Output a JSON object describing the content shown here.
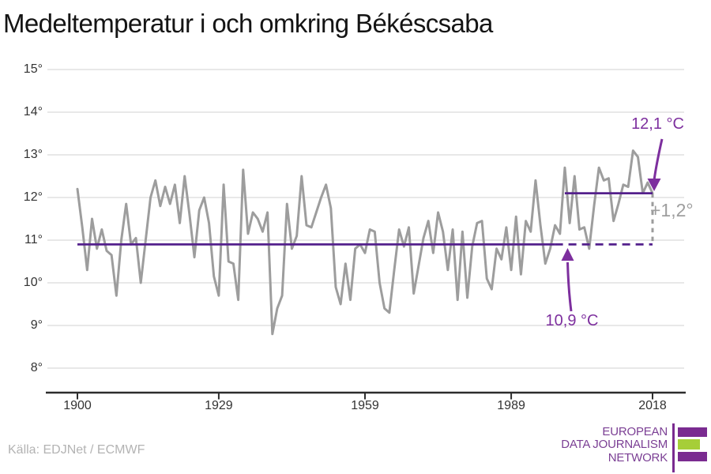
{
  "chart_data": {
    "type": "line",
    "title": "Medeltemperatur i och omkring Békéscsaba",
    "x_axis": {
      "tick_labels": [
        "1900",
        "1929",
        "1959",
        "1989",
        "2018"
      ],
      "tick_years": [
        1900,
        1929,
        1959,
        1989,
        2018
      ],
      "range": [
        1900,
        2018
      ]
    },
    "y_axis": {
      "tick_labels": [
        "15°",
        "14°",
        "13°",
        "12°",
        "11°",
        "10°",
        "9°",
        "8°"
      ],
      "tick_values": [
        15,
        14,
        13,
        12,
        11,
        10,
        9,
        8
      ],
      "range_shown": [
        8,
        15
      ]
    },
    "grid": true,
    "years": {
      "start": 1900,
      "end": 2018,
      "step": 1
    },
    "values": [
      12.2,
      11.3,
      10.3,
      11.5,
      10.8,
      11.25,
      10.75,
      10.65,
      9.7,
      11.0,
      11.85,
      10.9,
      11.05,
      10.0,
      11.0,
      12.0,
      12.4,
      11.8,
      12.25,
      11.85,
      12.3,
      11.4,
      12.5,
      11.6,
      10.6,
      11.7,
      12.0,
      11.4,
      10.15,
      9.7,
      12.3,
      10.5,
      10.45,
      9.6,
      12.65,
      11.15,
      11.65,
      11.5,
      11.2,
      11.65,
      8.8,
      9.4,
      9.7,
      11.85,
      10.8,
      11.1,
      12.5,
      11.35,
      11.3,
      11.65,
      12.0,
      12.3,
      11.75,
      9.9,
      9.5,
      10.45,
      9.6,
      10.8,
      10.9,
      10.7,
      11.25,
      11.2,
      10.0,
      9.4,
      9.3,
      10.3,
      11.25,
      10.85,
      11.3,
      9.75,
      10.4,
      11.05,
      11.45,
      10.7,
      11.65,
      11.2,
      10.3,
      11.25,
      9.6,
      11.2,
      9.65,
      10.85,
      11.4,
      11.45,
      10.1,
      9.85,
      10.8,
      10.55,
      11.3,
      10.3,
      11.55,
      10.2,
      11.45,
      11.2,
      12.4,
      11.35,
      10.45,
      10.8,
      11.35,
      11.15,
      12.7,
      11.4,
      12.5,
      11.25,
      11.3,
      10.8,
      11.8,
      12.7,
      12.4,
      12.45,
      11.45,
      11.85,
      12.3,
      12.25,
      13.1,
      12.95,
      12.1,
      12.35,
      12.1
    ]
  },
  "annotations": {
    "current": {
      "label": "12,1 °C",
      "value": 12.1,
      "line_from_year": 2000,
      "line_to_year": 2018
    },
    "baseline": {
      "label": "10,9 °C",
      "value": 10.9,
      "solid_from_year": 1900,
      "solid_to_year": 1998,
      "dashed_to_year": 2018
    },
    "delta": {
      "label": "+1,2°"
    }
  },
  "colors": {
    "line": "#9d9d9d",
    "reference_line": "#54208c",
    "accent": "#7d2f9e",
    "grid": "#e4e4e4",
    "axis": "#2d2d2d",
    "muted": "#9e9e9e",
    "source_text": "#b3b3b3",
    "logo_purple": "#7a2b90",
    "logo_text_purple": "#7b3f94",
    "logo_green": "#a6ce38"
  },
  "footer": {
    "source": "Källa: EDJNet / ECMWF",
    "logo_lines": [
      "EUROPEAN",
      "DATA JOURNALISM",
      "NETWORK"
    ]
  }
}
